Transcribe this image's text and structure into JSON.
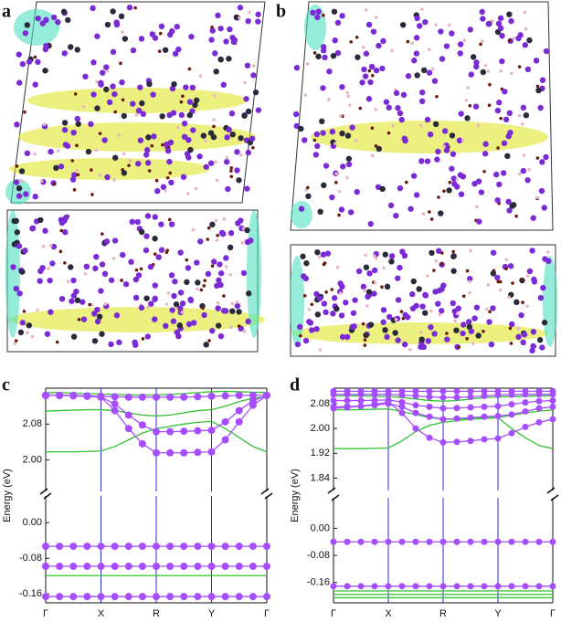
{
  "structure_panels": [
    {
      "label": "a"
    },
    {
      "label": "b"
    }
  ],
  "chart_data": [
    {
      "type": "line",
      "label": "c",
      "y_label": "Energy (eV)",
      "grid": true,
      "x": [
        0,
        0.25,
        0.5,
        0.75,
        1,
        1.25,
        1.5,
        1.75,
        2,
        2.25,
        2.5,
        2.75,
        3,
        3.25,
        3.5,
        3.75,
        4
      ],
      "xlim": [
        0,
        4
      ],
      "xticks": [
        {
          "value": 0,
          "label": "Γ"
        },
        {
          "value": 1,
          "label": "X"
        },
        {
          "value": 2,
          "label": "R"
        },
        {
          "value": 3,
          "label": "Y"
        },
        {
          "value": 4,
          "label": "Γ"
        }
      ],
      "ylim": [
        -0.18,
        0.06
      ],
      "yticks": [
        {
          "value": 0,
          "label": "0.00"
        },
        {
          "value": -0.08,
          "label": "-0.08"
        },
        {
          "value": -0.16,
          "label": "-0.16"
        }
      ],
      "y2lim": [
        1.93,
        2.16
      ],
      "y2ticks": [
        {
          "value": 2,
          "label": "2.00"
        },
        {
          "value": 2.08,
          "label": "2.08"
        }
      ],
      "series": [
        {
          "color": "#33c233",
          "markers": false,
          "axis": "y2",
          "values": [
            2.15,
            2.15,
            2.149,
            2.148,
            2.147,
            2.146,
            2.145,
            2.145,
            2.145,
            2.146,
            2.148,
            2.15,
            2.152,
            2.153,
            2.152,
            2.151,
            2.15
          ]
        },
        {
          "color": "#33c233",
          "markers": false,
          "axis": "y2",
          "values": [
            2.109,
            2.11,
            2.111,
            2.112,
            2.112,
            2.11,
            2.105,
            2.1,
            2.098,
            2.1,
            2.105,
            2.11,
            2.112,
            2.12,
            2.13,
            2.138,
            2.14
          ]
        },
        {
          "color": "#33c233",
          "markers": false,
          "axis": "y2",
          "values": [
            2.018,
            2.018,
            2.018,
            2.019,
            2.02,
            2.03,
            2.045,
            2.06,
            2.07,
            2.075,
            2.08,
            2.084,
            2.086,
            2.07,
            2.05,
            2.03,
            2.018
          ]
        },
        {
          "color": "#a64dff",
          "markers": true,
          "axis": "y2",
          "values": [
            2.144,
            2.144,
            2.144,
            2.143,
            2.142,
            2.141,
            2.14,
            2.14,
            2.14,
            2.14,
            2.14,
            2.141,
            2.142,
            2.143,
            2.144,
            2.144,
            2.144
          ]
        },
        {
          "color": "#a64dff",
          "markers": true,
          "axis": "y2",
          "values": [
            2.144,
            2.144,
            2.143,
            2.142,
            2.14,
            2.125,
            2.1,
            2.078,
            2.063,
            2.063,
            2.064,
            2.065,
            2.066,
            2.085,
            2.11,
            2.132,
            2.144
          ]
        },
        {
          "color": "#a64dff",
          "markers": true,
          "axis": "y2",
          "values": [
            2.144,
            2.144,
            2.143,
            2.142,
            2.14,
            2.11,
            2.07,
            2.036,
            2.016,
            2.016,
            2.016,
            2.017,
            2.018,
            2.045,
            2.085,
            2.122,
            2.144
          ]
        },
        {
          "color": "#33c233",
          "markers": false,
          "axis": "y",
          "values": [
            -0.119,
            -0.119,
            -0.119,
            -0.119,
            -0.119,
            -0.119,
            -0.119,
            -0.119,
            -0.119,
            -0.119,
            -0.119,
            -0.119,
            -0.119,
            -0.119,
            -0.119,
            -0.119,
            -0.119
          ]
        },
        {
          "color": "#a64dff",
          "markers": true,
          "axis": "y",
          "values": [
            -0.053,
            -0.053,
            -0.053,
            -0.053,
            -0.053,
            -0.053,
            -0.053,
            -0.053,
            -0.053,
            -0.053,
            -0.053,
            -0.053,
            -0.053,
            -0.053,
            -0.053,
            -0.053,
            -0.053
          ]
        },
        {
          "color": "#a64dff",
          "markers": true,
          "axis": "y",
          "values": [
            -0.098,
            -0.098,
            -0.098,
            -0.098,
            -0.098,
            -0.098,
            -0.098,
            -0.098,
            -0.098,
            -0.098,
            -0.098,
            -0.098,
            -0.098,
            -0.098,
            -0.098,
            -0.098,
            -0.098
          ]
        },
        {
          "color": "#a64dff",
          "markers": true,
          "axis": "y",
          "values": [
            -0.166,
            -0.166,
            -0.166,
            -0.166,
            -0.166,
            -0.166,
            -0.166,
            -0.166,
            -0.166,
            -0.166,
            -0.166,
            -0.166,
            -0.166,
            -0.166,
            -0.166,
            -0.166,
            -0.166
          ]
        }
      ]
    },
    {
      "type": "line",
      "label": "d",
      "y_label": "Energy (eV)",
      "grid": true,
      "x": [
        0,
        0.25,
        0.5,
        0.75,
        1,
        1.25,
        1.5,
        1.75,
        2,
        2.25,
        2.5,
        2.75,
        3,
        3.25,
        3.5,
        3.75,
        4
      ],
      "xlim": [
        0,
        4
      ],
      "xticks": [
        {
          "value": 0,
          "label": "Γ"
        },
        {
          "value": 1,
          "label": "X"
        },
        {
          "value": 2,
          "label": "R"
        },
        {
          "value": 3,
          "label": "Y"
        },
        {
          "value": 4,
          "label": "Γ"
        }
      ],
      "ylim": [
        -0.22,
        0.09
      ],
      "yticks": [
        {
          "value": 0,
          "label": "0.00"
        },
        {
          "value": -0.08,
          "label": "-0.08"
        },
        {
          "value": -0.16,
          "label": "-0.16"
        }
      ],
      "y2lim": [
        1.8,
        2.13
      ],
      "y2ticks": [
        {
          "value": 1.84,
          "label": "1.84"
        },
        {
          "value": 1.92,
          "label": "1.92"
        },
        {
          "value": 2,
          "label": "2.00"
        },
        {
          "value": 2.08,
          "label": "2.08"
        }
      ],
      "series": [
        {
          "color": "#33c233",
          "markers": false,
          "axis": "y2",
          "values": [
            2.105,
            2.105,
            2.105,
            2.104,
            2.103,
            2.1,
            2.095,
            2.09,
            2.088,
            2.09,
            2.095,
            2.1,
            2.102,
            2.103,
            2.104,
            2.105,
            2.105
          ]
        },
        {
          "color": "#33c233",
          "markers": false,
          "axis": "y2",
          "values": [
            2.06,
            2.06,
            2.061,
            2.062,
            2.063,
            2.055,
            2.045,
            2.035,
            2.03,
            2.03,
            2.032,
            2.034,
            2.036,
            2.042,
            2.05,
            2.056,
            2.06
          ]
        },
        {
          "color": "#33c233",
          "markers": false,
          "axis": "y2",
          "values": [
            1.935,
            1.935,
            1.935,
            1.936,
            1.937,
            1.96,
            1.99,
            2.01,
            2.02,
            2.025,
            2.03,
            2.032,
            2.035,
            2,
            1.97,
            1.945,
            1.935
          ]
        },
        {
          "color": "#a64dff",
          "markers": true,
          "axis": "y2",
          "values": [
            2.12,
            2.12,
            2.12,
            2.12,
            2.12,
            2.12,
            2.12,
            2.12,
            2.12,
            2.12,
            2.12,
            2.12,
            2.12,
            2.12,
            2.12,
            2.12,
            2.12
          ]
        },
        {
          "color": "#a64dff",
          "markers": true,
          "axis": "y2",
          "values": [
            2.11,
            2.11,
            2.11,
            2.11,
            2.11,
            2.108,
            2.105,
            2.102,
            2.1,
            2.1,
            2.102,
            2.105,
            2.108,
            2.109,
            2.11,
            2.11,
            2.11
          ]
        },
        {
          "color": "#a64dff",
          "markers": true,
          "axis": "y2",
          "values": [
            2.09,
            2.09,
            2.09,
            2.091,
            2.092,
            2.085,
            2.075,
            2.07,
            2.065,
            2.066,
            2.068,
            2.07,
            2.072,
            2.078,
            2.084,
            2.088,
            2.09
          ]
        },
        {
          "color": "#a64dff",
          "markers": true,
          "axis": "y2",
          "values": [
            2.07,
            2.071,
            2.072,
            2.075,
            2.08,
            2.07,
            2.05,
            2.038,
            2.03,
            2.032,
            2.035,
            2.038,
            2.04,
            2.045,
            2.055,
            2.065,
            2.07
          ]
        },
        {
          "color": "#a64dff",
          "markers": true,
          "axis": "y2",
          "values": [
            2.065,
            2.068,
            2.072,
            2.078,
            2.085,
            2.05,
            2,
            1.97,
            1.955,
            1.957,
            1.96,
            1.965,
            1.968,
            1.985,
            2.005,
            2.02,
            2.03
          ]
        },
        {
          "color": "#33c233",
          "markers": false,
          "axis": "y",
          "values": [
            -0.185,
            -0.185,
            -0.185,
            -0.185,
            -0.185,
            -0.185,
            -0.185,
            -0.185,
            -0.185,
            -0.185,
            -0.185,
            -0.185,
            -0.185,
            -0.185,
            -0.185,
            -0.185,
            -0.185
          ]
        },
        {
          "color": "#33c233",
          "markers": false,
          "axis": "y",
          "values": [
            -0.195,
            -0.195,
            -0.195,
            -0.195,
            -0.195,
            -0.195,
            -0.195,
            -0.195,
            -0.195,
            -0.195,
            -0.195,
            -0.195,
            -0.195,
            -0.195,
            -0.195,
            -0.195,
            -0.195
          ]
        },
        {
          "color": "#33c233",
          "markers": false,
          "axis": "y",
          "values": [
            -0.205,
            -0.205,
            -0.205,
            -0.205,
            -0.205,
            -0.205,
            -0.205,
            -0.205,
            -0.205,
            -0.205,
            -0.205,
            -0.205,
            -0.205,
            -0.205,
            -0.205,
            -0.205,
            -0.205
          ]
        },
        {
          "color": "#a64dff",
          "markers": true,
          "axis": "y",
          "values": [
            -0.04,
            -0.04,
            -0.04,
            -0.04,
            -0.04,
            -0.04,
            -0.04,
            -0.04,
            -0.04,
            -0.04,
            -0.04,
            -0.04,
            -0.04,
            -0.04,
            -0.04,
            -0.04,
            -0.04
          ]
        },
        {
          "color": "#a64dff",
          "markers": true,
          "axis": "y",
          "values": [
            -0.171,
            -0.171,
            -0.171,
            -0.171,
            -0.171,
            -0.171,
            -0.171,
            -0.171,
            -0.171,
            -0.171,
            -0.171,
            -0.171,
            -0.171,
            -0.171,
            -0.171,
            -0.171,
            -0.171
          ]
        }
      ]
    }
  ]
}
